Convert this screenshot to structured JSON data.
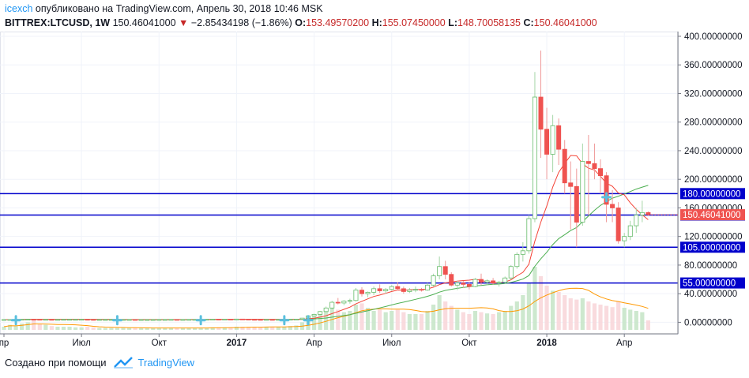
{
  "header": {
    "author": "icexch",
    "published_text": "опубликовано на TradingView.com, Апрель 30, 2018 10:46 MSK"
  },
  "legend": {
    "symbol": "BITTREX:LTCUSD, 1W",
    "last": "150.46041000",
    "change": "−2.85434198 (−1.86%)",
    "open_label": "O:",
    "open": "153.49570200",
    "high_label": "H:",
    "high": "155.07450000",
    "low_label": "L:",
    "low": "148.70058135",
    "close_label": "C:",
    "close": "150.46041000"
  },
  "footer": {
    "created_with": "Создано при помощи",
    "brand": "TradingView"
  },
  "colors": {
    "up": "#26a69a",
    "down": "#ef5350",
    "level_line": "#0000cc",
    "ma_fast": "#f44336",
    "ma_slow": "#4caf50",
    "volume_ma": "#ff9800",
    "price_tag": "#ef5350",
    "level_tag": "#0000cc"
  },
  "chart_data": {
    "type": "candlestick",
    "timeframe": "1W",
    "symbol": "BITTREX:LTCUSD",
    "y_range": [
      -15,
      400
    ],
    "y_ticks": [
      0,
      40,
      80,
      120,
      160,
      200,
      240,
      280,
      320,
      360,
      400
    ],
    "y_tick_labels": [
      "0.00000000",
      "40.00000000",
      "80.00000000",
      "120.00000000",
      "160.00000000",
      "200.00000000",
      "240.00000000",
      "280.00000000",
      "320.00000000",
      "360.00000000",
      "400.00000000"
    ],
    "x_labels": [
      {
        "label": "пр",
        "bar": 0
      },
      {
        "label": "Июл",
        "bar": 13
      },
      {
        "label": "Окт",
        "bar": 26
      },
      {
        "label": "2017",
        "bar": 39
      },
      {
        "label": "Апр",
        "bar": 52
      },
      {
        "label": "Июл",
        "bar": 65
      },
      {
        "label": "Окт",
        "bar": 78
      },
      {
        "label": "2018",
        "bar": 91
      },
      {
        "label": "Апр",
        "bar": 104
      }
    ],
    "horizontal_levels": [
      {
        "value": 180,
        "label": "180.00000000"
      },
      {
        "value": 150,
        "label": "150.00000000"
      },
      {
        "value": 105,
        "label": "105.00000000"
      },
      {
        "value": 55,
        "label": "55.00000000"
      }
    ],
    "last_price": {
      "value": 150.46,
      "label": "150.46041000"
    },
    "markers": [
      {
        "bar": 2,
        "value": 3
      },
      {
        "bar": 19,
        "value": 3
      },
      {
        "bar": 33,
        "value": 3
      },
      {
        "bar": 47,
        "value": 3
      },
      {
        "bar": 51,
        "value": 3
      },
      {
        "bar": 101,
        "value": 175
      }
    ],
    "ohlc": [
      [
        3.8,
        3.9,
        3.7,
        3.8
      ],
      [
        3.8,
        3.9,
        3.7,
        3.8
      ],
      [
        3.8,
        4.0,
        3.7,
        3.9
      ],
      [
        3.9,
        4.2,
        3.8,
        4.1
      ],
      [
        4.1,
        4.3,
        3.9,
        4.2
      ],
      [
        4.2,
        4.4,
        4.0,
        4.1
      ],
      [
        4.1,
        4.2,
        3.9,
        4.0
      ],
      [
        4.0,
        4.1,
        3.9,
        4.0
      ],
      [
        4.0,
        4.1,
        3.8,
        3.9
      ],
      [
        3.9,
        4.0,
        3.8,
        3.9
      ],
      [
        3.9,
        4.1,
        3.8,
        4.0
      ],
      [
        4.0,
        4.1,
        3.9,
        4.0
      ],
      [
        4.0,
        4.1,
        3.9,
        4.0
      ],
      [
        4.0,
        4.2,
        3.9,
        4.1
      ],
      [
        4.1,
        4.2,
        3.9,
        3.9
      ],
      [
        3.9,
        4.0,
        3.8,
        3.8
      ],
      [
        3.8,
        3.9,
        3.7,
        3.8
      ],
      [
        3.8,
        3.9,
        3.7,
        3.8
      ],
      [
        3.8,
        3.9,
        3.7,
        3.8
      ],
      [
        3.8,
        3.9,
        3.7,
        3.8
      ],
      [
        3.8,
        3.9,
        3.7,
        3.8
      ],
      [
        3.8,
        3.9,
        3.7,
        3.8
      ],
      [
        3.8,
        3.9,
        3.7,
        3.7
      ],
      [
        3.7,
        3.8,
        3.6,
        3.7
      ],
      [
        3.7,
        3.8,
        3.6,
        3.7
      ],
      [
        3.7,
        3.8,
        3.6,
        3.7
      ],
      [
        3.7,
        3.8,
        3.6,
        3.8
      ],
      [
        3.8,
        3.9,
        3.7,
        3.8
      ],
      [
        3.8,
        4.0,
        3.7,
        3.9
      ],
      [
        3.9,
        4.0,
        3.7,
        3.8
      ],
      [
        3.8,
        3.9,
        3.7,
        3.8
      ],
      [
        3.8,
        3.9,
        3.7,
        3.9
      ],
      [
        3.9,
        4.0,
        3.8,
        3.9
      ],
      [
        3.9,
        4.0,
        3.8,
        4.0
      ],
      [
        4.0,
        4.2,
        3.9,
        4.1
      ],
      [
        4.1,
        4.4,
        4.0,
        4.3
      ],
      [
        4.3,
        4.5,
        4.1,
        4.2
      ],
      [
        4.2,
        4.4,
        4.1,
        4.3
      ],
      [
        4.3,
        4.4,
        4.1,
        4.2
      ],
      [
        4.2,
        4.6,
        4.1,
        4.5
      ],
      [
        4.5,
        4.6,
        4.2,
        4.3
      ],
      [
        4.3,
        4.4,
        3.9,
        4.0
      ],
      [
        4.0,
        4.1,
        3.7,
        3.9
      ],
      [
        3.9,
        4.0,
        3.7,
        3.8
      ],
      [
        3.8,
        4.0,
        3.7,
        3.9
      ],
      [
        3.9,
        4.0,
        3.7,
        3.8
      ],
      [
        3.8,
        4.0,
        3.7,
        3.9
      ],
      [
        3.9,
        4.1,
        3.8,
        4.0
      ],
      [
        4.0,
        4.2,
        3.9,
        4.1
      ],
      [
        4.1,
        4.5,
        4.0,
        4.3
      ],
      [
        4.3,
        6.0,
        4.2,
        5.8
      ],
      [
        5.8,
        9.5,
        5.5,
        9.0
      ],
      [
        9.0,
        12.0,
        8.2,
        11.0
      ],
      [
        11.0,
        16.0,
        10.0,
        15.0
      ],
      [
        15.0,
        22.0,
        14.0,
        20.0
      ],
      [
        20.0,
        30.0,
        18.0,
        28.0
      ],
      [
        28.0,
        34.0,
        25.0,
        27.0
      ],
      [
        27.0,
        31.0,
        24.0,
        29.5
      ],
      [
        29.5,
        33.0,
        26.0,
        30.5
      ],
      [
        30.5,
        48.0,
        29.0,
        45.0
      ],
      [
        45.0,
        49.0,
        36.0,
        40.0
      ],
      [
        40.0,
        43.0,
        35.0,
        42.0
      ],
      [
        42.0,
        50.0,
        38.0,
        47.0
      ],
      [
        47.0,
        53.0,
        41.0,
        44.0
      ],
      [
        44.0,
        48.0,
        40.0,
        46.0
      ],
      [
        46.0,
        52.0,
        44.0,
        50.0
      ],
      [
        50.0,
        56.0,
        45.0,
        47.0
      ],
      [
        47.0,
        50.0,
        40.0,
        43.0
      ],
      [
        43.0,
        48.0,
        41.0,
        45.0
      ],
      [
        45.0,
        50.0,
        42.0,
        46.0
      ],
      [
        46.0,
        48.0,
        43.0,
        45.0
      ],
      [
        45.0,
        55.0,
        44.0,
        52.0
      ],
      [
        52.0,
        68.0,
        50.0,
        65.0
      ],
      [
        65.0,
        92.0,
        60.0,
        78.0
      ],
      [
        78.0,
        86.0,
        60.0,
        67.0
      ],
      [
        67.0,
        70.0,
        50.0,
        52.0
      ],
      [
        52.0,
        58.0,
        45.0,
        55.0
      ],
      [
        55.0,
        58.0,
        48.0,
        53.0
      ],
      [
        53.0,
        56.0,
        46.0,
        50.0
      ],
      [
        50.0,
        62.0,
        49.0,
        60.0
      ],
      [
        60.0,
        68.0,
        52.0,
        56.0
      ],
      [
        56.0,
        60.0,
        52.0,
        58.0
      ],
      [
        58.0,
        62.0,
        53.0,
        55.0
      ],
      [
        55.0,
        58.0,
        50.0,
        56.0
      ],
      [
        56.0,
        64.0,
        54.0,
        62.0
      ],
      [
        62.0,
        80.0,
        60.0,
        78.0
      ],
      [
        78.0,
        98.0,
        75.0,
        95.0
      ],
      [
        95.0,
        112.0,
        85.0,
        100.0
      ],
      [
        100.0,
        150.0,
        96.0,
        145.0
      ],
      [
        145.0,
        350.0,
        140.0,
        315.0
      ],
      [
        315.0,
        380.0,
        230.0,
        270.0
      ],
      [
        270.0,
        300.0,
        200.0,
        235.0
      ],
      [
        235.0,
        290.0,
        210.0,
        275.0
      ],
      [
        275.0,
        285.0,
        220.0,
        242.0
      ],
      [
        242.0,
        255.0,
        180.0,
        195.0
      ],
      [
        195.0,
        225.0,
        130.0,
        190.0
      ],
      [
        190.0,
        215.0,
        105.0,
        140.0
      ],
      [
        140.0,
        250.0,
        135.0,
        225.0
      ],
      [
        225.0,
        262.0,
        150.0,
        222.0
      ],
      [
        222.0,
        250.0,
        200.0,
        215.0
      ],
      [
        215.0,
        228.0,
        180.0,
        205.0
      ],
      [
        205.0,
        210.0,
        140.0,
        165.0
      ],
      [
        165.0,
        185.0,
        140.0,
        160.0
      ],
      [
        160.0,
        168.0,
        110.0,
        114.0
      ],
      [
        114.0,
        125.0,
        105.0,
        120.0
      ],
      [
        120.0,
        142.0,
        115.0,
        135.0
      ],
      [
        135.0,
        160.0,
        125.0,
        150.0
      ],
      [
        150.0,
        170.0,
        140.0,
        153.5
      ],
      [
        153.5,
        155.1,
        148.7,
        150.46
      ]
    ],
    "volume_relative": [
      0.05,
      0.08,
      0.06,
      0.1,
      0.12,
      0.15,
      0.1,
      0.08,
      0.06,
      0.05,
      0.05,
      0.05,
      0.04,
      0.04,
      0.05,
      0.04,
      0.03,
      0.03,
      0.03,
      0.03,
      0.03,
      0.03,
      0.03,
      0.03,
      0.03,
      0.03,
      0.03,
      0.03,
      0.03,
      0.03,
      0.03,
      0.03,
      0.03,
      0.03,
      0.03,
      0.04,
      0.04,
      0.04,
      0.04,
      0.05,
      0.05,
      0.05,
      0.05,
      0.04,
      0.05,
      0.05,
      0.05,
      0.05,
      0.06,
      0.07,
      0.12,
      0.18,
      0.22,
      0.25,
      0.3,
      0.35,
      0.32,
      0.28,
      0.3,
      0.4,
      0.42,
      0.35,
      0.3,
      0.32,
      0.28,
      0.3,
      0.32,
      0.28,
      0.25,
      0.25,
      0.25,
      0.3,
      0.4,
      0.55,
      0.45,
      0.38,
      0.32,
      0.28,
      0.25,
      0.3,
      0.28,
      0.26,
      0.25,
      0.28,
      0.3,
      0.38,
      0.45,
      0.55,
      0.75,
      1.0,
      0.85,
      0.7,
      0.62,
      0.6,
      0.55,
      0.5,
      0.48,
      0.5,
      0.45,
      0.42,
      0.4,
      0.38,
      0.36,
      0.45,
      0.35,
      0.32,
      0.3,
      0.28,
      0.15
    ]
  }
}
